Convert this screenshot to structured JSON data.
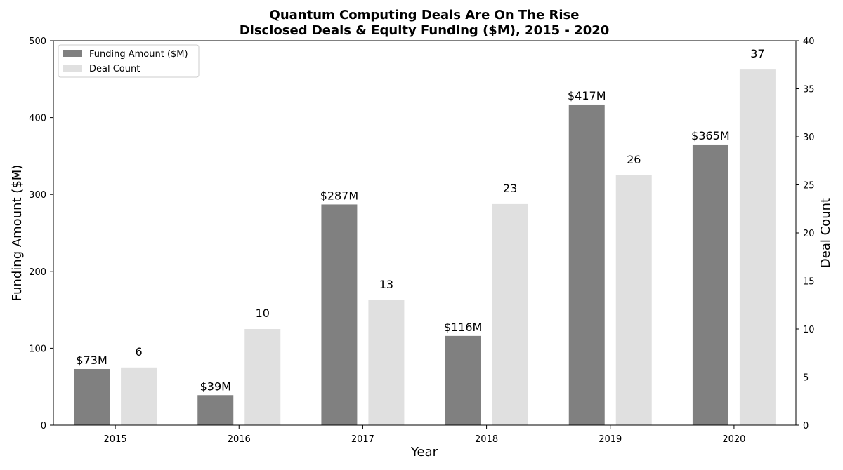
{
  "chart_data": {
    "type": "bar",
    "title": "Quantum Computing Deals Are On The Rise",
    "subtitle": "Disclosed Deals & Equity Funding ($M), 2015 - 2020",
    "xlabel": "Year",
    "ylabel": "Funding Amount ($M)",
    "y2label": "Deal Count",
    "categories": [
      "2015",
      "2016",
      "2017",
      "2018",
      "2019",
      "2020"
    ],
    "ylim": [
      0,
      500
    ],
    "y2lim": [
      0,
      40
    ],
    "yticks": [
      0,
      100,
      200,
      300,
      400,
      500
    ],
    "y2ticks": [
      0,
      5,
      10,
      15,
      20,
      25,
      30,
      35,
      40
    ],
    "grid": false,
    "legend_position": "top-left",
    "series": [
      {
        "name": "Funding Amount ($M)",
        "axis": "left",
        "color": "#808080",
        "values": [
          73,
          39,
          287,
          116,
          417,
          365
        ],
        "labels": [
          "$73M",
          "$39M",
          "$287M",
          "$116M",
          "$417M",
          "$365M"
        ]
      },
      {
        "name": "Deal Count",
        "axis": "right",
        "color": "#e0e0e0",
        "values": [
          6,
          10,
          13,
          23,
          26,
          37
        ],
        "labels": [
          "6",
          "10",
          "13",
          "23",
          "26",
          "37"
        ]
      }
    ]
  }
}
